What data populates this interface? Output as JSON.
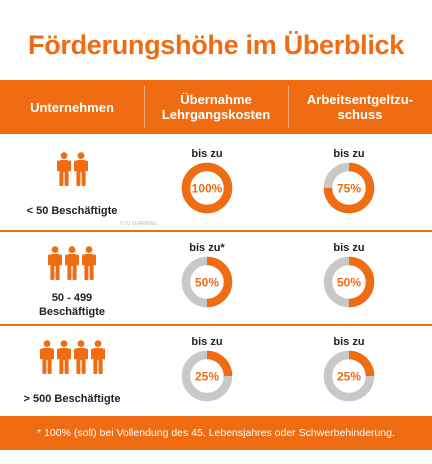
{
  "title": "Förderungshöhe im Überblick",
  "colors": {
    "accent": "#ef6c13",
    "track": "#c8c8c8"
  },
  "header": {
    "col1": "Unternehmen",
    "col2_line1": "Übernahme",
    "col2_line2": "Lehrgangskosten",
    "col3_line1": "Arbeitsentgeltzu-",
    "col3_line2": "schuss"
  },
  "watermark": "© IQ LEARNING",
  "rows": [
    {
      "company_line1": "< 50 Beschäftigte",
      "company_line2": "",
      "people_icons": 2,
      "course_prefix": "bis zu",
      "course_value": "100%",
      "course_fraction": 1.0,
      "wage_prefix": "bis zu",
      "wage_value": "75%",
      "wage_fraction": 0.75
    },
    {
      "company_line1": "50 - 499",
      "company_line2": "Beschäftigte",
      "people_icons": 3,
      "course_prefix": "bis zu*",
      "course_value": "50%",
      "course_fraction": 0.5,
      "wage_prefix": "bis zu",
      "wage_value": "50%",
      "wage_fraction": 0.5
    },
    {
      "company_line1": "> 500 Beschäftigte",
      "company_line2": "",
      "people_icons": 4,
      "course_prefix": "bis zu",
      "course_value": "25%",
      "course_fraction": 0.25,
      "wage_prefix": "bis zu",
      "wage_value": "25%",
      "wage_fraction": 0.25
    }
  ],
  "footer": "* 100% (soll) bei Vollendung des 45. Lebensjahres oder Schwerbehinderung."
}
